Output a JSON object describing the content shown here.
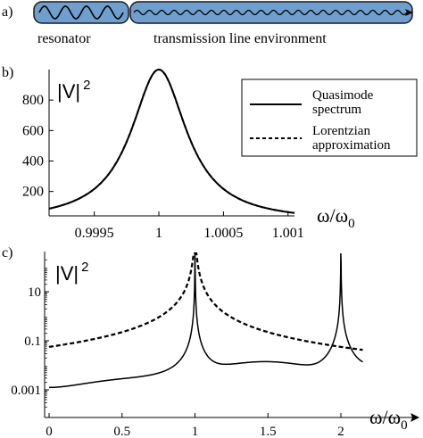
{
  "panel_a": {
    "label": "a)",
    "resonator_label": "resonator",
    "environment_label": "transmission line environment",
    "colors": {
      "fill": "#6f9fcf",
      "stroke": "#1a1a1a"
    }
  },
  "legend": {
    "entries": [
      {
        "text_line1": "Quasimode",
        "text_line2": "spectrum",
        "style": "solid"
      },
      {
        "text_line1": "Lorentzian",
        "text_line2": "approximation",
        "style": "dashed"
      }
    ]
  },
  "chart_data": [
    {
      "id": "b",
      "type": "line",
      "panel_label": "b)",
      "ylabel": "|V|",
      "ylabel_superscript": "2",
      "xlabel": "ω/ω",
      "xlabel_subscript": "0",
      "xlim": [
        0.99915,
        1.00105
      ],
      "ylim": [
        40,
        1000
      ],
      "x_ticks": [
        0.9995,
        1,
        1.0005,
        1.001
      ],
      "x_tick_labels": [
        "0.9995",
        "1",
        "1.0005",
        "1.001"
      ],
      "y_ticks": [
        200,
        400,
        600,
        800
      ],
      "y_tick_labels": [
        "200",
        "400",
        "600",
        "800"
      ],
      "legend": "top-right",
      "series": [
        {
          "name": "Quasimode spectrum",
          "style": "solid",
          "peak": 1000,
          "center": 1.0,
          "halfwidth": 0.000263
        },
        {
          "name": "Lorentzian approximation",
          "style": "dashed",
          "peak": 1000,
          "center": 1.0,
          "halfwidth": 0.000263
        }
      ]
    },
    {
      "id": "c",
      "type": "line",
      "panel_label": "c)",
      "ylabel": "|V|",
      "ylabel_superscript": "2",
      "xlabel": "ω/ω",
      "xlabel_subscript": "0",
      "xlim": [
        -0.05,
        2.2
      ],
      "ylog": true,
      "ylim_log10": [
        -4,
        3
      ],
      "x_ticks": [
        0,
        0.5,
        1,
        1.5,
        2
      ],
      "x_tick_labels": [
        "0",
        "0.5",
        "1",
        "1.5",
        "2"
      ],
      "y_ticks": [
        10,
        0.1,
        0.001
      ],
      "y_tick_labels": [
        "10",
        "0.1",
        "0.001"
      ],
      "series": [
        {
          "name": "Quasimode spectrum",
          "style": "solid"
        },
        {
          "name": "Lorentzian approximation",
          "style": "dashed"
        }
      ]
    }
  ]
}
